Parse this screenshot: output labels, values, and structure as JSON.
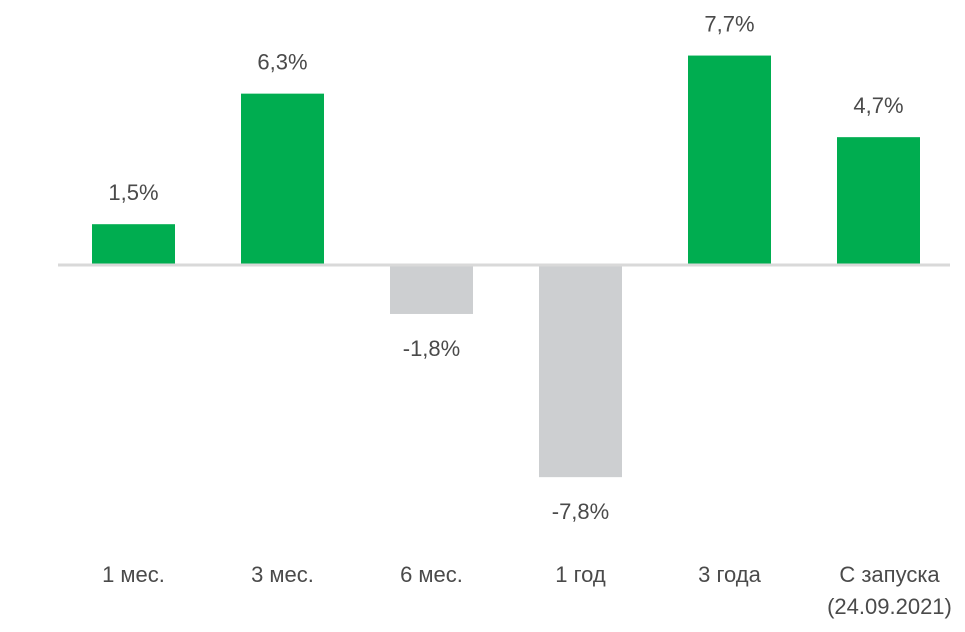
{
  "chart_data": {
    "type": "bar",
    "title": "",
    "xlabel": "",
    "ylabel": "",
    "categories": [
      "1 мес.",
      "3 мес.",
      "6 мес.",
      "1 год",
      "3 года",
      "С запуска|(24.09.2021)"
    ],
    "values": [
      1.5,
      6.3,
      -1.8,
      -7.8,
      7.7,
      4.7
    ],
    "data_labels": [
      "1,5%",
      "6,3%",
      "-1,8%",
      "-7,8%",
      "7,7%",
      "4,7%"
    ],
    "ylim": [
      -7.8,
      7.7
    ],
    "grid": false,
    "colors": {
      "positive": "#00AD50",
      "negative": "#CDCFD1",
      "baseline": "#D9D9D9",
      "text": "#4A4A4A"
    }
  }
}
